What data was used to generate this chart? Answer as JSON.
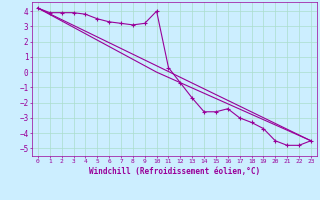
{
  "xlabel": "Windchill (Refroidissement éolien,°C)",
  "bg_color": "#cceeff",
  "grid_color": "#aaddcc",
  "line_color": "#990099",
  "xlim": [
    -0.5,
    23.5
  ],
  "ylim": [
    -5.5,
    4.6
  ],
  "yticks": [
    -5,
    -4,
    -3,
    -2,
    -1,
    0,
    1,
    2,
    3,
    4
  ],
  "xticks": [
    0,
    1,
    2,
    3,
    4,
    5,
    6,
    7,
    8,
    9,
    10,
    11,
    12,
    13,
    14,
    15,
    16,
    17,
    18,
    19,
    20,
    21,
    22,
    23
  ],
  "line1_x": [
    0,
    1,
    2,
    3,
    4,
    5,
    6,
    7,
    8,
    9,
    10,
    11,
    12,
    13,
    14,
    15,
    16,
    17,
    18,
    19,
    20,
    21,
    22,
    23
  ],
  "line1_y": [
    4.2,
    3.9,
    3.9,
    3.9,
    3.8,
    3.5,
    3.3,
    3.2,
    3.1,
    3.2,
    4.0,
    0.3,
    -0.7,
    -1.7,
    -2.6,
    -2.6,
    -2.4,
    -3.0,
    -3.3,
    -3.7,
    -4.5,
    -4.8,
    -4.8,
    -4.5
  ],
  "line2_x": [
    0,
    23
  ],
  "line2_y": [
    4.2,
    -4.5
  ],
  "line3_x": [
    0,
    10,
    23
  ],
  "line3_y": [
    4.2,
    0.0,
    -4.5
  ]
}
